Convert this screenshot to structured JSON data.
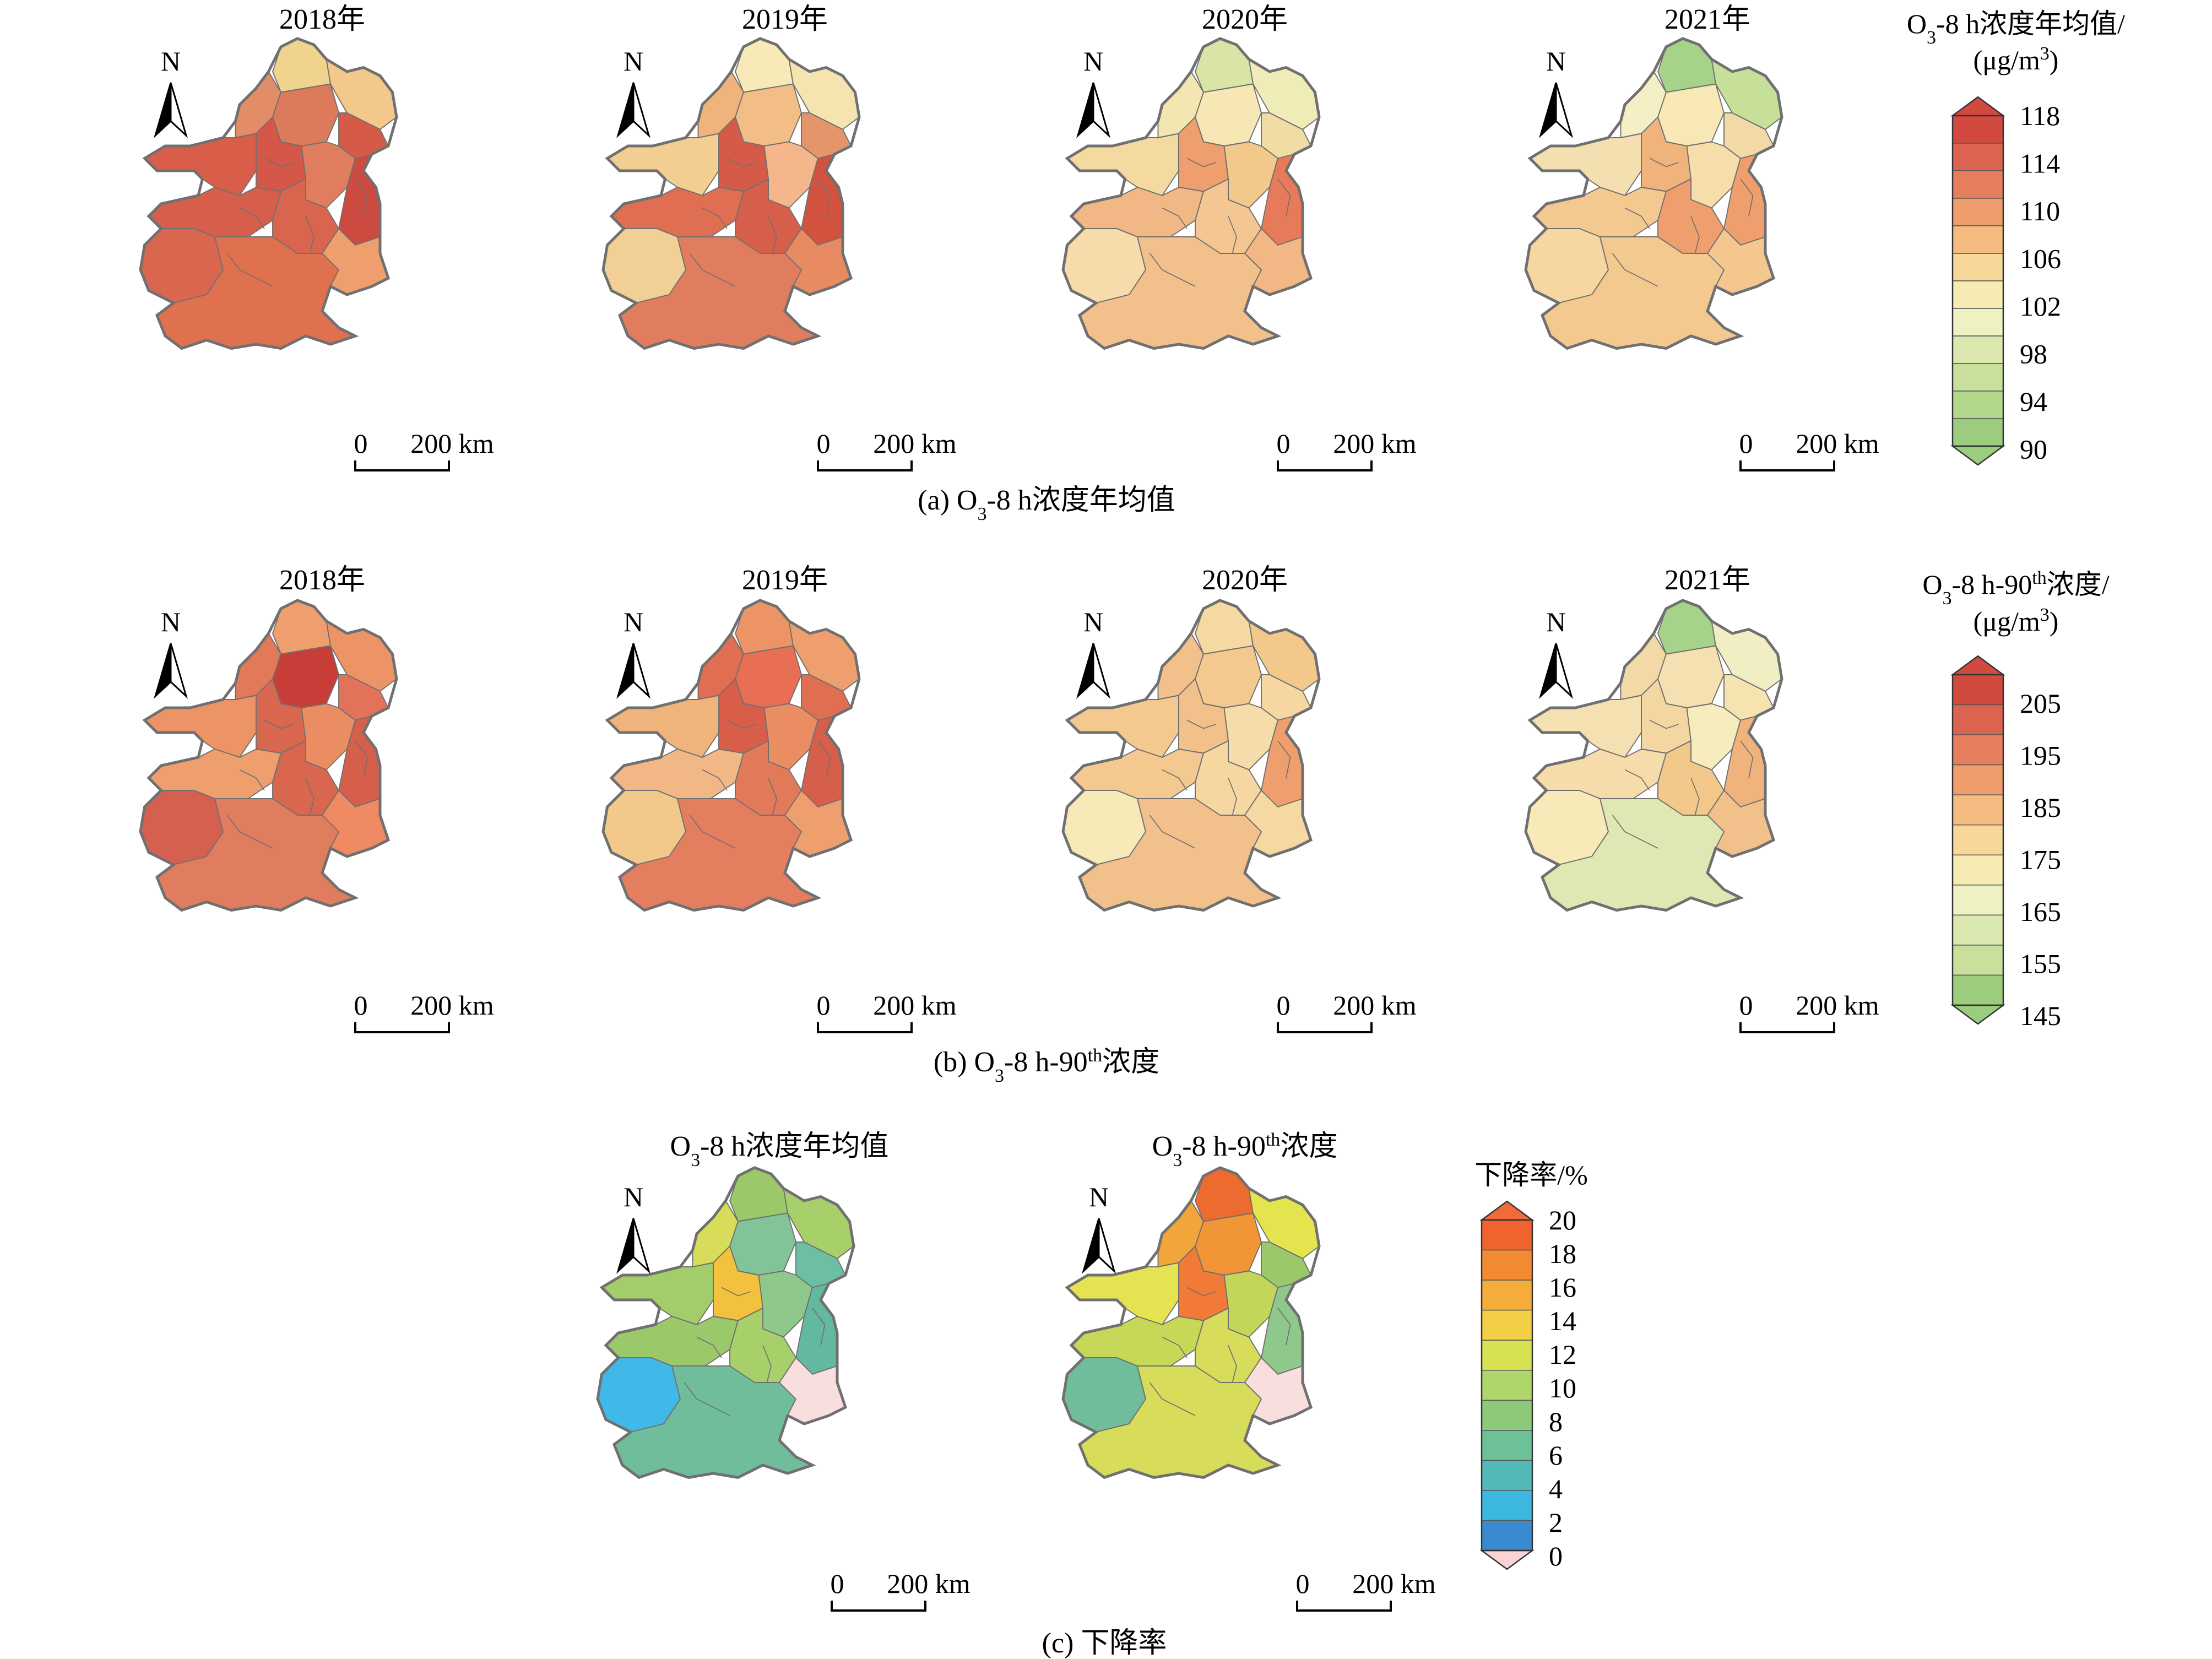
{
  "rows": {
    "a": {
      "caption_pre": "(a) O",
      "caption_sub": "3",
      "caption_post": "-8 h浓度年均值",
      "maps": [
        {
          "title": "2018年",
          "fills": [
            "#f0d48e",
            "#f2c98b",
            "#e28c68",
            "#dd7a5c",
            "#d55b48",
            "#d85e4a",
            "#d4574a",
            "#e07d5f",
            "#cc4a3f",
            "#d55f4b",
            "#d9654f",
            "#d9664f",
            "#e0714e",
            "#ef9f6d"
          ]
        },
        {
          "title": "2019年",
          "fills": [
            "#f7eab8",
            "#f5e4b0",
            "#f0b37c",
            "#f2be86",
            "#e4966a",
            "#f2ce92",
            "#d55b48",
            "#f4b68a",
            "#d0523f",
            "#e06e52",
            "#d55f4b",
            "#f2cf95",
            "#e07d5f",
            "#e88a62"
          ]
        },
        {
          "title": "2020年",
          "fills": [
            "#d9e4a7",
            "#f0ecb8",
            "#f4e6b0",
            "#f6e7b4",
            "#f1dca4",
            "#f4d9a0",
            "#ef9f6d",
            "#f2c98b",
            "#e67a59",
            "#f1b784",
            "#f4c792",
            "#f6dcaa",
            "#f2c08a",
            "#f1b784"
          ]
        },
        {
          "title": "2021年",
          "fills": [
            "#a6d28a",
            "#c6e09a",
            "#f4efc4",
            "#f7e8b6",
            "#f2d9a6",
            "#f4dfb0",
            "#f0b37c",
            "#f6ddaa",
            "#ef9f6d",
            "#f4c990",
            "#ef9f6d",
            "#f6d7a2",
            "#f4c990",
            "#f4c78e"
          ]
        }
      ],
      "legend": {
        "title_pre": "O",
        "title_sub": "3",
        "title_post": "-8 h浓度年均值/",
        "unit_pre": "(μg/m",
        "unit_sup": "3",
        "unit_post": ")",
        "ticks": [
          "118",
          "114",
          "110",
          "106",
          "102",
          "98",
          "94",
          "90"
        ],
        "colors": [
          "#d24a3f",
          "#dc6350",
          "#e67d5d",
          "#f09d6d",
          "#f5bc82",
          "#f8d898",
          "#f6ebb2",
          "#eef2c2",
          "#dbe9b0",
          "#c8e09c",
          "#b2d88c",
          "#9ccd7e"
        ]
      },
      "scale": {
        "zero": "0",
        "label": "200 km"
      }
    },
    "b": {
      "caption_pre": "(b) O",
      "caption_sub": "3",
      "caption_mid": "-8 h-90",
      "caption_sup": "th",
      "caption_post": "浓度",
      "maps": [
        {
          "title": "2018年",
          "fills": [
            "#ef9f6d",
            "#ec9466",
            "#e27a5a",
            "#c93d39",
            "#e3725a",
            "#ec9466",
            "#d9664f",
            "#ea8d63",
            "#d55f4b",
            "#ef9f6d",
            "#d9664f",
            "#d66050",
            "#e07d5f",
            "#ef8a62"
          ]
        },
        {
          "title": "2019年",
          "fills": [
            "#ec9466",
            "#ef9f6d",
            "#e06e52",
            "#e86e54",
            "#e06e52",
            "#f0b37c",
            "#d85e4a",
            "#ea8d63",
            "#d55f4b",
            "#f1b784",
            "#e27a5a",
            "#f2c98b",
            "#e47e5f",
            "#ef9f6d"
          ]
        },
        {
          "title": "2020年",
          "fills": [
            "#f6d8a2",
            "#f2c98b",
            "#f2c08a",
            "#f4c990",
            "#f6d7a2",
            "#f4c990",
            "#f2c08a",
            "#f6dcaa",
            "#ef9f6d",
            "#f4c990",
            "#f6d7a2",
            "#f7eab8",
            "#f2c08a",
            "#f6d8a2"
          ]
        },
        {
          "title": "2021年",
          "fills": [
            "#a6d28a",
            "#f1eec4",
            "#f2d9a6",
            "#f4e0b0",
            "#f6e4b0",
            "#f4e0b0",
            "#f4d6a2",
            "#f7ecbe",
            "#f0b37c",
            "#f6dcaa",
            "#f2c98b",
            "#f7eab8",
            "#dfe8b2",
            "#f2c08a"
          ]
        }
      ],
      "legend": {
        "title_pre": "O",
        "title_sub": "3",
        "title_mid": "-8 h-90",
        "title_sup": "th",
        "title_post": "浓度/",
        "unit_pre": "(μg/m",
        "unit_sup": "3",
        "unit_post": ")",
        "ticks": [
          "205",
          "195",
          "185",
          "175",
          "165",
          "155",
          "145"
        ],
        "colors": [
          "#d24a3f",
          "#dc6350",
          "#e67d5d",
          "#f09d6d",
          "#f5bc82",
          "#f8d898",
          "#f6ebb2",
          "#eef2c2",
          "#dbe9b0",
          "#c8e09c",
          "#9ccd7e"
        ]
      },
      "scale": {
        "zero": "0",
        "label": "200 km"
      }
    },
    "c": {
      "caption": "(c) 下降率",
      "maps": [
        {
          "title_pre": "O",
          "title_sub": "3",
          "title_post": "-8 h浓度年均值",
          "fills": [
            "#9bc96a",
            "#a7cf6a",
            "#d7dd5a",
            "#82c39a",
            "#6cbfa2",
            "#a3cc6a",
            "#f2c13e",
            "#8ec88a",
            "#62b9a0",
            "#9bc96a",
            "#a7cf6a",
            "#40b8e8",
            "#70bd9c",
            "#f9dede"
          ]
        },
        {
          "title_pre": "O",
          "title_sub": "3",
          "title_mid": "-8 h-90",
          "title_sup": "th",
          "title_post": "浓度",
          "fills": [
            "#ee6b30",
            "#e4e44e",
            "#f1a53a",
            "#f19536",
            "#9bc96a",
            "#e6e352",
            "#f07a36",
            "#c3d65a",
            "#8ec88a",
            "#c7d858",
            "#d7dd5a",
            "#70bd9c",
            "#d7dd5a",
            "#f9dede"
          ]
        }
      ],
      "legend": {
        "title": "下降率/%",
        "ticks": [
          "20",
          "18",
          "16",
          "14",
          "12",
          "10",
          "8",
          "6",
          "4",
          "2",
          "0"
        ],
        "colors": [
          "#f0632e",
          "#f28a34",
          "#f4ac3a",
          "#f2cf44",
          "#d8e152",
          "#afd66a",
          "#8cc978",
          "#6cc196",
          "#53b9b8",
          "#3cb7e0",
          "#3a8ad0"
        ],
        "over_color": "#f06a3a",
        "under_color": "#fad4d4"
      },
      "scale": {
        "zero": "0",
        "label": "200 km"
      }
    }
  },
  "north_label": "N",
  "colors": {
    "boundary": "#707070",
    "inner": "#707070"
  }
}
